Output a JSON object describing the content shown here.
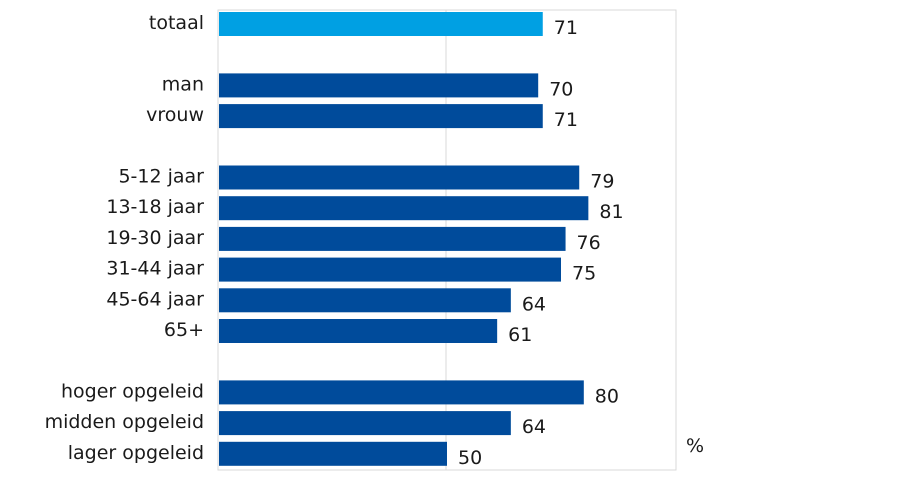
{
  "chart_data": {
    "type": "bar",
    "orientation": "horizontal",
    "unit": "%",
    "xlim": [
      0,
      100
    ],
    "grid": "vertical gridline at 50",
    "colors": {
      "total": "#00a0e3",
      "group": "#004b9b",
      "frame": "#d9d9d9"
    },
    "groups": [
      {
        "items": [
          {
            "label": "totaal",
            "value": 71,
            "highlight": true
          }
        ]
      },
      {
        "items": [
          {
            "label": "man",
            "value": 70
          },
          {
            "label": "vrouw",
            "value": 71
          }
        ]
      },
      {
        "items": [
          {
            "label": "5-12 jaar",
            "value": 79
          },
          {
            "label": "13-18 jaar",
            "value": 81
          },
          {
            "label": "19-30 jaar",
            "value": 76
          },
          {
            "label": "31-44 jaar",
            "value": 75
          },
          {
            "label": "45-64 jaar",
            "value": 64
          },
          {
            "label": "65+",
            "value": 61
          }
        ]
      },
      {
        "items": [
          {
            "label": "hoger opgeleid",
            "value": 80
          },
          {
            "label": "midden opgeleid",
            "value": 64
          },
          {
            "label": "lager opgeleid",
            "value": 50
          }
        ]
      }
    ]
  }
}
